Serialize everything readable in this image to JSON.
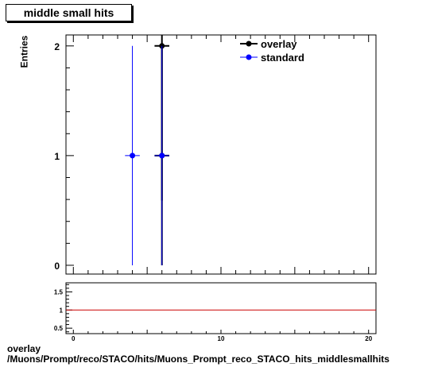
{
  "title": "middle small hits",
  "ylabel": "Entries",
  "footer": {
    "line1": "overlay",
    "line2": "/Muons/Prompt/reco/STACO/hits/Muons_Prompt_reco_STACO_hits_middlesmallhits"
  },
  "chart_data": [
    {
      "type": "scatter",
      "panel": "main",
      "xlim": [
        -0.5,
        20.5
      ],
      "ylim": [
        -0.08,
        2.1
      ],
      "y_ticks": [
        0,
        1,
        2
      ],
      "x_tick_labels_shown": false,
      "legend_position": "top-right",
      "series": [
        {
          "name": "overlay",
          "color": "#000000",
          "points": [
            {
              "x": 6,
              "y": 2,
              "xerr": 0.5,
              "yerr_low": 1.41,
              "yerr_high": 1.41
            },
            {
              "x": 6,
              "y": 1,
              "xerr": 0.5,
              "yerr_low": 1,
              "yerr_high": 1
            }
          ]
        },
        {
          "name": "standard",
          "color": "#0000ff",
          "points": [
            {
              "x": 4,
              "y": 1,
              "xerr": 0.5,
              "yerr_low": 1,
              "yerr_high": 1
            },
            {
              "x": 6,
              "y": 1,
              "xerr": 0.5,
              "yerr_low": 1,
              "yerr_high": 1
            }
          ]
        }
      ]
    },
    {
      "type": "line",
      "panel": "ratio",
      "xlim": [
        -0.5,
        20.5
      ],
      "ylim": [
        0.35,
        1.75
      ],
      "y_ticks": [
        "0.5",
        "1",
        "1.5"
      ],
      "x_ticks": [
        "0",
        "10",
        "20"
      ],
      "reference_line": {
        "y": 1,
        "color": "#cc0000"
      }
    }
  ]
}
